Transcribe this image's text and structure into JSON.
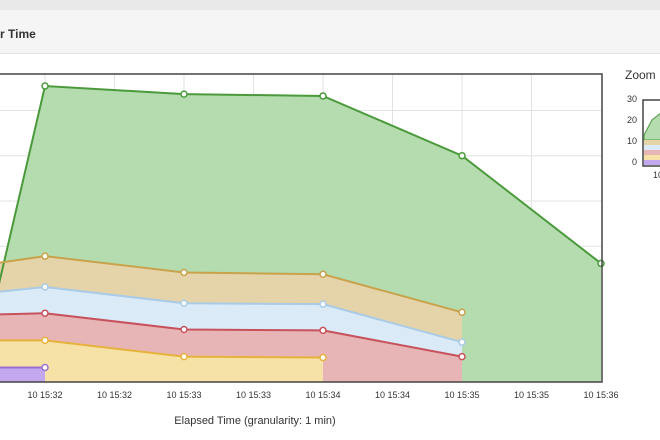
{
  "panel": {
    "title": "r Time"
  },
  "zoom": {
    "label": "Zoom",
    "ticks": [
      "30",
      "20",
      "10",
      "0"
    ],
    "x_tick": "10"
  },
  "chart_data": {
    "type": "area",
    "xlabel": "Elapsed Time (granularity: 1 min)",
    "x_ticks": [
      "10 15:32",
      "10 15:32",
      "10 15:33",
      "10 15:33",
      "10 15:34",
      "10 15:34",
      "10 15:35",
      "10 15:35",
      "10 15:36"
    ],
    "series": [
      {
        "color": "#4a9a3c",
        "fill": "#b4dcae",
        "points": [
          [
            0,
            -0.3
          ],
          [
            1,
            32.7
          ],
          [
            3,
            31.8
          ],
          [
            5,
            31.6
          ],
          [
            7,
            25.0
          ],
          [
            9,
            13.1
          ]
        ]
      },
      {
        "color": "#c9a24c",
        "fill": "#e5d3aa",
        "points": [
          [
            0,
            12.8
          ],
          [
            1,
            13.9
          ],
          [
            3,
            12.1
          ],
          [
            5,
            11.9
          ],
          [
            7,
            7.7
          ]
        ]
      },
      {
        "color": "#a9cbe6",
        "fill": "#dbeaf7",
        "points": [
          [
            0,
            9.7
          ],
          [
            1,
            10.5
          ],
          [
            3,
            8.7
          ],
          [
            5,
            8.6
          ],
          [
            7,
            4.4
          ]
        ]
      },
      {
        "color": "#c7525c",
        "fill": "#e8b5b7",
        "points": [
          [
            0,
            7.4
          ],
          [
            1,
            7.6
          ],
          [
            3,
            5.8
          ],
          [
            5,
            5.7
          ],
          [
            7,
            2.8
          ]
        ]
      },
      {
        "color": "#e6b23c",
        "fill": "#f6e2a6",
        "points": [
          [
            0,
            4.6
          ],
          [
            1,
            4.6
          ],
          [
            3,
            2.8
          ],
          [
            5,
            2.7
          ]
        ]
      },
      {
        "color": "#9b6fd1",
        "fill": "#c4a8ef",
        "points": [
          [
            0,
            1.6
          ],
          [
            1,
            1.6
          ]
        ]
      }
    ]
  }
}
